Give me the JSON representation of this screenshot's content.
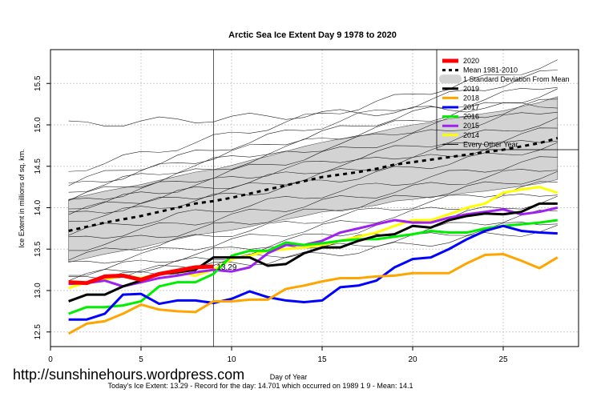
{
  "website": "http://sunshinehours.wordpress.com",
  "footer": "Today's Ice Extent: 13.29  - Record for the day: 14.701 which occurred on 1989 1 9  - Mean: 14.1",
  "chart_data": {
    "type": "line",
    "title": "Arctic Sea Ice Extent Day 9 1978 to 2020",
    "xlabel": "Day of Year",
    "ylabel": "Ice Extent in millions of sq. km.",
    "xlim": [
      0,
      29
    ],
    "ylim": [
      12.4,
      15.9
    ],
    "xticks": [
      0,
      5,
      10,
      15,
      20,
      25
    ],
    "yticks": [
      12.5,
      13.0,
      13.5,
      14.0,
      14.5,
      15.0,
      15.5
    ],
    "grid": true,
    "current_day": 9,
    "current_value_label": "13.29",
    "legend_position": "top-right",
    "legend": [
      "2020",
      "Mean 1981-2010",
      "1 Standard Deviation From Mean",
      "2019",
      "2018",
      "2017",
      "2016",
      "2015",
      "2014",
      "Every Other Year"
    ],
    "mean": [
      13.72,
      13.77,
      13.82,
      13.86,
      13.9,
      13.95,
      14.0,
      14.05,
      14.08,
      14.12,
      14.17,
      14.22,
      14.27,
      14.32,
      14.37,
      14.4,
      14.43,
      14.47,
      14.52,
      14.55,
      14.58,
      14.61,
      14.64,
      14.67,
      14.7,
      14.74,
      14.78,
      14.84
    ],
    "sd": [
      0.38,
      0.38,
      0.38,
      0.38,
      0.38,
      0.38,
      0.38,
      0.38,
      0.38,
      0.39,
      0.4,
      0.4,
      0.41,
      0.42,
      0.42,
      0.43,
      0.43,
      0.44,
      0.44,
      0.45,
      0.45,
      0.46,
      0.46,
      0.47,
      0.47,
      0.48,
      0.49,
      0.5
    ],
    "series": [
      {
        "name": "2014",
        "color": "#ffff00",
        "values": [
          13.03,
          13.1,
          13.13,
          13.18,
          13.15,
          13.2,
          13.22,
          13.18,
          13.25,
          13.38,
          13.42,
          13.48,
          13.5,
          13.52,
          13.55,
          13.6,
          13.65,
          13.7,
          13.78,
          13.85,
          13.85,
          13.92,
          14.0,
          14.05,
          14.18,
          14.22,
          14.25,
          14.18
        ]
      },
      {
        "name": "2015",
        "color": "#a020f0",
        "values": [
          13.08,
          13.09,
          13.12,
          13.05,
          13.1,
          13.15,
          13.18,
          13.22,
          13.25,
          13.23,
          13.28,
          13.45,
          13.55,
          13.55,
          13.6,
          13.7,
          13.75,
          13.8,
          13.85,
          13.82,
          13.82,
          13.88,
          13.92,
          13.95,
          13.98,
          13.92,
          13.95,
          14.0
        ]
      },
      {
        "name": "2016",
        "color": "#00ee00",
        "values": [
          12.72,
          12.8,
          12.8,
          12.82,
          12.87,
          13.05,
          13.1,
          13.1,
          13.2,
          13.42,
          13.48,
          13.48,
          13.58,
          13.55,
          13.57,
          13.6,
          13.62,
          13.62,
          13.65,
          13.68,
          13.72,
          13.7,
          13.7,
          13.75,
          13.78,
          13.8,
          13.82,
          13.85
        ]
      },
      {
        "name": "2017",
        "color": "#0000ff",
        "values": [
          12.65,
          12.65,
          12.72,
          12.95,
          12.96,
          12.84,
          12.88,
          12.88,
          12.85,
          12.9,
          12.99,
          12.92,
          12.88,
          12.86,
          12.88,
          13.04,
          13.06,
          13.12,
          13.28,
          13.38,
          13.4,
          13.5,
          13.62,
          13.72,
          13.78,
          13.72,
          13.7,
          13.69
        ]
      },
      {
        "name": "2018",
        "color": "#ffa500",
        "values": [
          12.48,
          12.6,
          12.63,
          12.72,
          12.83,
          12.77,
          12.75,
          12.74,
          12.87,
          12.87,
          12.89,
          12.89,
          13.02,
          13.06,
          13.11,
          13.15,
          13.15,
          13.17,
          13.18,
          13.21,
          13.21,
          13.21,
          13.33,
          13.43,
          13.44,
          13.36,
          13.27,
          13.4
        ]
      },
      {
        "name": "2019",
        "color": "#000000",
        "values": [
          12.87,
          12.95,
          12.95,
          13.05,
          13.12,
          13.2,
          13.22,
          13.25,
          13.4,
          13.4,
          13.4,
          13.3,
          13.32,
          13.45,
          13.52,
          13.52,
          13.6,
          13.66,
          13.68,
          13.78,
          13.76,
          13.85,
          13.9,
          13.93,
          13.92,
          13.95,
          14.05,
          14.05
        ]
      },
      {
        "name": "2020",
        "color": "#ff0000",
        "values": [
          13.1,
          13.09,
          13.17,
          13.18,
          13.13,
          13.2,
          13.24,
          13.28,
          13.29
        ]
      }
    ],
    "every_other_year_start_end": [
      [
        15.0,
        15.25
      ],
      [
        14.45,
        15.75
      ],
      [
        14.3,
        15.65
      ],
      [
        14.25,
        15.5
      ],
      [
        14.2,
        15.4
      ],
      [
        14.12,
        15.3
      ],
      [
        14.05,
        15.2
      ],
      [
        14.0,
        15.05
      ],
      [
        13.95,
        14.95
      ],
      [
        13.9,
        14.85
      ],
      [
        13.85,
        14.75
      ],
      [
        13.7,
        14.6
      ],
      [
        13.6,
        14.5
      ],
      [
        13.5,
        14.4
      ],
      [
        13.4,
        14.3
      ],
      [
        13.3,
        14.2
      ],
      [
        13.2,
        14.1
      ],
      [
        13.15,
        13.95
      ],
      [
        13.12,
        13.85
      ],
      [
        13.1,
        13.75
      ]
    ]
  }
}
